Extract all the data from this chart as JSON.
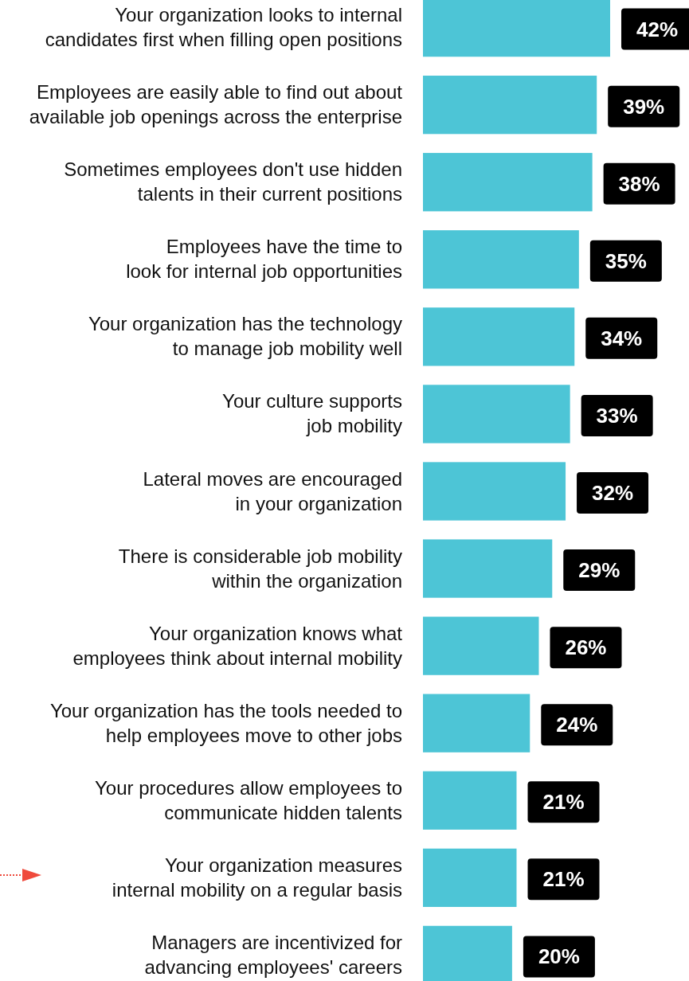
{
  "chart_data": {
    "type": "bar",
    "orientation": "horizontal",
    "color": "#4dc5d6",
    "categories": [
      "Your organization looks to internal\ncandidates first when filling open positions",
      "Employees are easily able to find out about\navailable job openings across the enterprise",
      "Sometimes employees don't use hidden\ntalents in their current positions",
      "Employees have the time to\nlook for internal job opportunities",
      "Your organization has the technology\nto manage job mobility well",
      "Your culture supports\njob mobility",
      "Lateral moves are encouraged\nin your organization",
      "There is considerable job mobility\nwithin the organization",
      "Your organization knows what\nemployees think about internal mobility",
      "Your organization has the tools needed to\nhelp employees move to other jobs",
      "Your procedures allow employees to\ncommunicate hidden talents",
      "Your organization measures\ninternal mobility on a regular basis",
      "Managers are incentivized for\nadvancing employees' careers"
    ],
    "values": [
      42,
      39,
      38,
      35,
      34,
      33,
      32,
      29,
      26,
      24,
      21,
      21,
      20
    ],
    "value_labels": [
      "42%",
      "39%",
      "38%",
      "35%",
      "34%",
      "33%",
      "32%",
      "29%",
      "26%",
      "24%",
      "21%",
      "21%",
      "20%"
    ]
  }
}
